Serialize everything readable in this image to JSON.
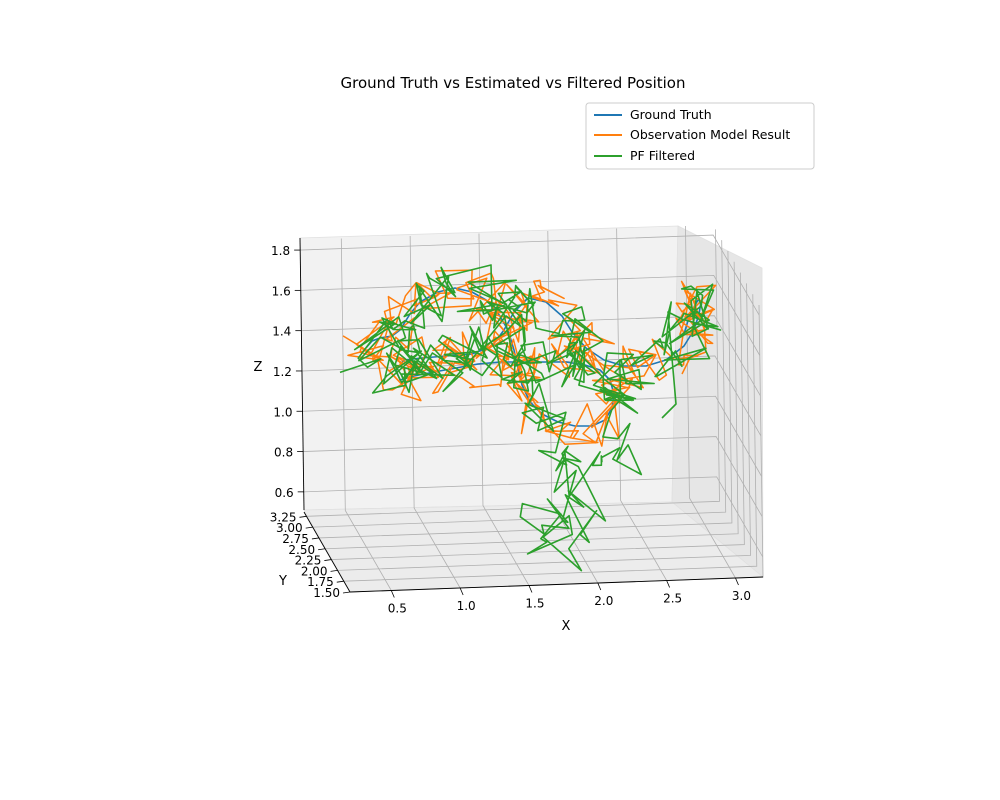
{
  "chart_data": {
    "type": "line",
    "title": "Ground Truth vs Estimated vs Filtered Position",
    "xlabel": "X",
    "ylabel": "Y",
    "zlabel": "Z",
    "xlim": [
      0.2,
      3.2
    ],
    "ylim": [
      1.5,
      3.35
    ],
    "zlim": [
      0.5,
      1.85
    ],
    "x_ticks": [
      "0.5",
      "1.0",
      "1.5",
      "2.0",
      "2.5",
      "3.0"
    ],
    "y_ticks": [
      "1.50",
      "1.75",
      "2.00",
      "2.25",
      "2.50",
      "2.75",
      "3.00",
      "3.25"
    ],
    "z_ticks": [
      "0.6",
      "0.8",
      "1.0",
      "1.2",
      "1.4",
      "1.6",
      "1.8"
    ],
    "grid": true,
    "legend_position": "upper-right",
    "series": [
      {
        "name": "Ground Truth",
        "color": "#1f77b4",
        "style": "smooth"
      },
      {
        "name": "Observation Model Result",
        "color": "#ff7f0e",
        "style": "noisy"
      },
      {
        "name": "PF Filtered",
        "color": "#2ca02c",
        "style": "noisy"
      }
    ]
  }
}
